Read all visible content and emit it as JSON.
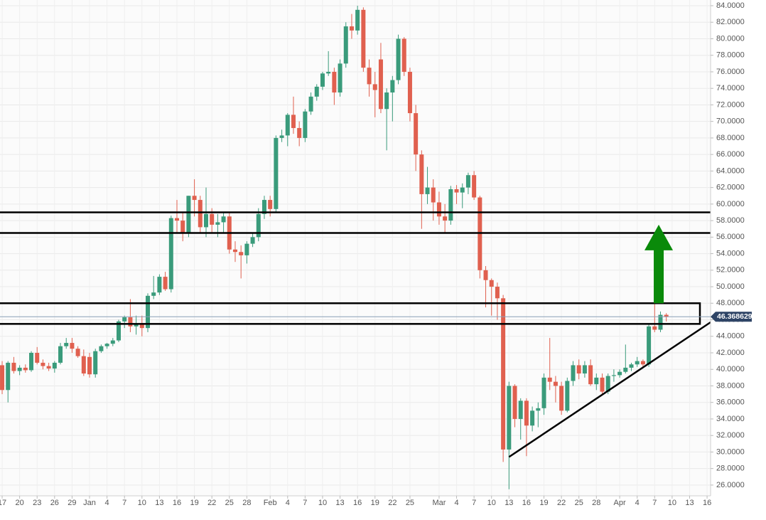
{
  "chart_data": {
    "type": "candlestick",
    "up_color": "#3a9b7b",
    "down_color": "#e0604f",
    "grid": true,
    "xlim": [
      -0.37,
      121.6
    ],
    "ylim": [
      24.7,
      84.69
    ],
    "xticks": [
      {
        "value": 0,
        "label": "17"
      },
      {
        "value": 3,
        "label": "20"
      },
      {
        "value": 6,
        "label": "23"
      },
      {
        "value": 9,
        "label": "26"
      },
      {
        "value": 12,
        "label": "29"
      },
      {
        "value": 15,
        "label": "Jan"
      },
      {
        "value": 18,
        "label": "4"
      },
      {
        "value": 21,
        "label": "7"
      },
      {
        "value": 24,
        "label": "10"
      },
      {
        "value": 27,
        "label": "13"
      },
      {
        "value": 30,
        "label": "16"
      },
      {
        "value": 33,
        "label": "19"
      },
      {
        "value": 36,
        "label": "22"
      },
      {
        "value": 39,
        "label": "25"
      },
      {
        "value": 42,
        "label": "28"
      },
      {
        "value": 46,
        "label": "Feb"
      },
      {
        "value": 49,
        "label": "4"
      },
      {
        "value": 52,
        "label": "7"
      },
      {
        "value": 55,
        "label": "10"
      },
      {
        "value": 58,
        "label": "13"
      },
      {
        "value": 61,
        "label": "16"
      },
      {
        "value": 64,
        "label": "19"
      },
      {
        "value": 67,
        "label": "22"
      },
      {
        "value": 70,
        "label": "25"
      },
      {
        "value": 75,
        "label": "Mar"
      },
      {
        "value": 78,
        "label": "4"
      },
      {
        "value": 81,
        "label": "7"
      },
      {
        "value": 84,
        "label": "10"
      },
      {
        "value": 87,
        "label": "13"
      },
      {
        "value": 90,
        "label": "16"
      },
      {
        "value": 93,
        "label": "19"
      },
      {
        "value": 96,
        "label": "22"
      },
      {
        "value": 99,
        "label": "25"
      },
      {
        "value": 102,
        "label": "28"
      },
      {
        "value": 106,
        "label": "Apr"
      },
      {
        "value": 109,
        "label": "4"
      },
      {
        "value": 112,
        "label": "7"
      },
      {
        "value": 115,
        "label": "10"
      },
      {
        "value": 118,
        "label": "13"
      },
      {
        "value": 121,
        "label": "16"
      }
    ],
    "yticks": [
      {
        "value": 26,
        "label": "26.0000"
      },
      {
        "value": 28,
        "label": "28.0000"
      },
      {
        "value": 30,
        "label": "30.0000"
      },
      {
        "value": 32,
        "label": "32.0000"
      },
      {
        "value": 34,
        "label": "34.0000"
      },
      {
        "value": 36,
        "label": "36.0000"
      },
      {
        "value": 38,
        "label": "38.0000"
      },
      {
        "value": 40,
        "label": "40.0000"
      },
      {
        "value": 42,
        "label": "42.0000"
      },
      {
        "value": 44,
        "label": "44.0000"
      },
      {
        "value": 46,
        "label": "46.0000"
      },
      {
        "value": 48,
        "label": "48.0000"
      },
      {
        "value": 50,
        "label": "50.0000"
      },
      {
        "value": 52,
        "label": "52.0000"
      },
      {
        "value": 54,
        "label": "54.0000"
      },
      {
        "value": 56,
        "label": "56.0000"
      },
      {
        "value": 58,
        "label": "58.0000"
      },
      {
        "value": 60,
        "label": "60.0000"
      },
      {
        "value": 62,
        "label": "62.0000"
      },
      {
        "value": 64,
        "label": "64.0000"
      },
      {
        "value": 66,
        "label": "66.0000"
      },
      {
        "value": 68,
        "label": "68.0000"
      },
      {
        "value": 70,
        "label": "70.0000"
      },
      {
        "value": 72,
        "label": "72.0000"
      },
      {
        "value": 74,
        "label": "74.0000"
      },
      {
        "value": 76,
        "label": "76.0000"
      },
      {
        "value": 78,
        "label": "78.0000"
      },
      {
        "value": 80,
        "label": "80.0000"
      },
      {
        "value": 82,
        "label": "82.0000"
      },
      {
        "value": 84,
        "label": "84.0000"
      }
    ],
    "open": [
      40.5,
      37.5,
      40.8,
      39.8,
      40.2,
      39.9,
      42,
      40.8,
      40.4,
      40.1,
      40.8,
      42.8,
      43.2,
      42.5,
      41.6,
      41.5,
      39.4,
      42.2,
      42.8,
      43.1,
      43.5,
      45.8,
      46.3,
      45.2,
      45.5,
      45,
      48.9,
      49.3,
      51.2,
      49.7,
      58.3,
      58,
      56.5,
      61,
      60.5,
      57.2,
      58.8,
      57.5,
      57.8,
      58.5,
      54.5,
      54.2,
      53.8,
      55.2,
      56,
      58.8,
      60.5,
      59.4,
      68,
      68.3,
      70.8,
      69.2,
      68,
      71.2,
      73,
      74.2,
      75.8,
      76,
      73.5,
      77,
      81.5,
      81,
      83.5,
      76.5,
      74.5,
      77.5,
      71.5,
      73.5,
      75,
      80,
      76,
      71,
      66,
      61.2,
      62,
      60.2,
      58.5,
      58,
      61.8,
      61.4,
      62,
      63.5,
      60.8,
      52,
      50.8,
      50,
      48.6,
      30.3,
      38,
      34,
      36.2,
      33.2,
      35,
      35.3,
      39,
      38.5,
      38,
      35,
      38.6,
      40.5,
      39.5,
      40.5,
      38.2,
      39,
      37.3,
      39.2,
      39.3,
      39.7,
      40.2,
      40.6,
      41,
      40.6,
      45.2,
      44.8,
      46.6
    ],
    "high": [
      41,
      41,
      41.5,
      40.5,
      40.6,
      42.2,
      42.7,
      41.2,
      40.8,
      41,
      43.2,
      43.8,
      43.8,
      42.8,
      42.4,
      42,
      42.5,
      43,
      43.2,
      43.8,
      46,
      46.5,
      48.5,
      46.5,
      46.5,
      49.2,
      51.3,
      51.5,
      51.8,
      58.6,
      60.5,
      59,
      61,
      63,
      61,
      62,
      59.5,
      58.8,
      59,
      59,
      55.5,
      55,
      55.5,
      56.5,
      59.5,
      61,
      61,
      68.3,
      69,
      71,
      73,
      70,
      71.5,
      73.5,
      74.5,
      76,
      78.5,
      76.5,
      77.5,
      82,
      83,
      84,
      83.8,
      77.5,
      76,
      79.5,
      74,
      75.5,
      80.5,
      80.2,
      76.5,
      72,
      66.5,
      64.5,
      63,
      61.5,
      60,
      62.2,
      62.3,
      62.5,
      63.8,
      64,
      61,
      52.5,
      51,
      50.5,
      49,
      38.5,
      38.2,
      36.5,
      36.5,
      35.5,
      36,
      39.5,
      43.8,
      39.2,
      38.5,
      39,
      41,
      41.2,
      41,
      41.2,
      39.5,
      39.5,
      39.5,
      40,
      40,
      43,
      40.8,
      41.5,
      41.2,
      45.5,
      48,
      47,
      46.8
    ],
    "low": [
      37,
      36,
      39.5,
      39.3,
      39.6,
      39.7,
      40.6,
      40,
      39.8,
      39.6,
      40.6,
      42.5,
      42,
      41.4,
      39.2,
      39,
      39,
      42,
      42.5,
      42.8,
      43.3,
      45,
      44.5,
      44.2,
      44,
      44.5,
      48.5,
      49,
      49.5,
      49.3,
      56.5,
      55.5,
      56,
      58.5,
      56.5,
      56,
      56.5,
      56,
      56.5,
      54,
      53,
      51,
      52.8,
      54.8,
      55.5,
      58.2,
      58.5,
      59,
      67.5,
      67,
      68.5,
      67,
      67.5,
      70.8,
      72.5,
      73.8,
      75.5,
      72,
      73,
      76.5,
      80,
      80.5,
      76,
      73,
      70.5,
      71,
      66.5,
      70,
      74.5,
      75.5,
      70,
      64,
      57,
      60,
      58,
      57.5,
      56.5,
      57.5,
      60,
      59.5,
      61.2,
      60.5,
      51,
      47.5,
      46.5,
      46,
      28.8,
      25.5,
      33,
      31.5,
      29.5,
      32.5,
      33,
      34.5,
      37.5,
      36,
      34.5,
      34.8,
      38,
      38.8,
      39,
      38,
      37.5,
      37,
      37,
      38.5,
      39,
      39.5,
      39.8,
      40.3,
      40.3,
      40.3,
      44.5,
      44.5,
      45.8
    ],
    "close": [
      37.5,
      40.8,
      39.8,
      40.2,
      39.9,
      42,
      40.8,
      40.4,
      40.1,
      40.8,
      42.8,
      43.2,
      42.5,
      41.6,
      39.5,
      39.4,
      42.2,
      42.8,
      43.1,
      43.5,
      45.8,
      46.3,
      45.2,
      45.5,
      45,
      48.9,
      49.3,
      51.2,
      49.7,
      58.3,
      58,
      56.5,
      61,
      60.5,
      57.2,
      58.8,
      57.5,
      57.8,
      58.5,
      54.5,
      54.2,
      53.8,
      55.2,
      56,
      58.8,
      60.5,
      59.4,
      68,
      68.3,
      70.8,
      69.2,
      68,
      71.2,
      73,
      74.2,
      75.8,
      76,
      73.5,
      77,
      81.5,
      81,
      83.5,
      76.5,
      74.5,
      73.8,
      71.5,
      73.5,
      75,
      80,
      76,
      71,
      66,
      61.2,
      62,
      60.2,
      58.5,
      58,
      61.8,
      61.4,
      62,
      63.5,
      60.8,
      52,
      50.8,
      50,
      48.6,
      30.3,
      38,
      34,
      36.2,
      33.2,
      35,
      35.3,
      39,
      38.5,
      38,
      35,
      38.6,
      40.5,
      39.5,
      40.5,
      38.2,
      39,
      37.3,
      39.2,
      39.3,
      39.7,
      40.2,
      40.6,
      41,
      40.6,
      45.2,
      44.8,
      46.6,
      46.37
    ],
    "levels": [
      59,
      56.5
    ],
    "zone": [
      45.5,
      48
    ],
    "trendline": {
      "x": [
        87,
        121.6
      ],
      "y": [
        29.4,
        45.7
      ]
    },
    "arrow": {
      "x": 112.7,
      "y": [
        48,
        57.5
      ],
      "color": "#0a8a0a"
    },
    "last_price": 46.368629
  }
}
